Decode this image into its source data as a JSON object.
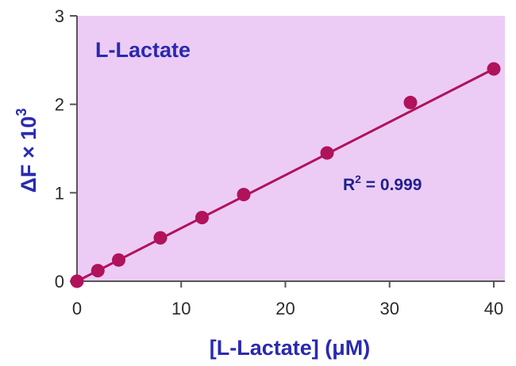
{
  "chart_data": {
    "type": "scatter",
    "title": "L-Lactate",
    "xlabel": "[L-Lactate] (μM)",
    "ylabel_main": "ΔF × 10",
    "ylabel_sup": "3",
    "xlim": [
      0,
      40
    ],
    "ylim": [
      0,
      3
    ],
    "xticks": [
      0,
      10,
      20,
      30,
      40
    ],
    "yticks": [
      0,
      1,
      2,
      3
    ],
    "grid": false,
    "background": "#ecccf4",
    "marker_color": "#b0125c",
    "line_color": "#b0125c",
    "series": [
      {
        "x": [
          0,
          2,
          4,
          8,
          12,
          16,
          24,
          32,
          40
        ],
        "y": [
          0.0,
          0.12,
          0.24,
          0.49,
          0.72,
          0.98,
          1.45,
          2.02,
          2.4
        ]
      }
    ],
    "fit_line": {
      "x": [
        0,
        40
      ],
      "y": [
        0.0,
        2.4
      ]
    },
    "annotation": {
      "prefix": "R",
      "sup": "2",
      "suffix": " = 0.999"
    }
  }
}
